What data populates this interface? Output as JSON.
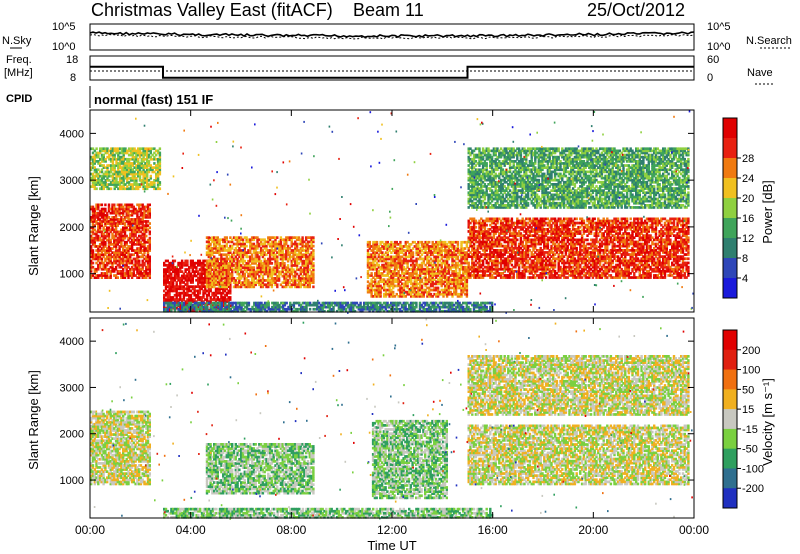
{
  "header": {
    "title": "Christmas Valley East (fitACF)",
    "beam": "Beam 11",
    "date": "25/Oct/2012"
  },
  "noise_panel": {
    "left_label": "N.Sky",
    "right_label": "N.Search",
    "left_ticks": [
      "10^5",
      "10^0"
    ],
    "right_ticks": [
      "10^5",
      "10^0"
    ]
  },
  "freq_panel": {
    "left_label_1": "Freq.",
    "left_label_2": "[MHz]",
    "right_label": "Nave",
    "left_ticks": [
      "18",
      "8"
    ],
    "right_ticks": [
      "60",
      "0"
    ]
  },
  "cpid": {
    "label": "CPID",
    "value": "normal (fast) 151 IF"
  },
  "x_axis": {
    "label": "Time UT",
    "ticks": [
      "00:00",
      "04:00",
      "08:00",
      "12:00",
      "16:00",
      "20:00",
      "00:00"
    ]
  },
  "power_panel": {
    "ylabel": "Slant Range [km]",
    "y_ticks": [
      "1000",
      "2000",
      "3000",
      "4000"
    ],
    "colorbar_label": "Power [dB]",
    "colorbar_ticks": [
      "4",
      "8",
      "12",
      "16",
      "20",
      "24",
      "28"
    ],
    "colors": [
      "#1a1adb",
      "#2e46b8",
      "#2f7f6f",
      "#3fa45a",
      "#8fd040",
      "#f0c020",
      "#f07a10",
      "#e82010",
      "#e00000"
    ]
  },
  "velocity_panel": {
    "ylabel": "Slant Range [km]",
    "y_ticks": [
      "1000",
      "2000",
      "3000",
      "4000"
    ],
    "colorbar_label": "Velocity [m s⁻¹]",
    "colorbar_ticks": [
      "200",
      "100",
      "50",
      "15",
      "-15",
      "-50",
      "-100",
      "-200"
    ],
    "colors": [
      "#2030c0",
      "#2f6f8f",
      "#2f9f5f",
      "#7ad040",
      "#c8c8c0",
      "#f0b020",
      "#f07010",
      "#e02010",
      "#e00000"
    ]
  },
  "chart_data": {
    "type": "heatmap",
    "x_range_hours": [
      0,
      24
    ],
    "y_range_km": [
      180,
      4500
    ],
    "freq_mhz": [
      {
        "start": 0,
        "end": 2.9,
        "value": 14
      },
      {
        "start": 2.9,
        "end": 15.0,
        "value": 9
      },
      {
        "start": 15.0,
        "end": 24,
        "value": 14
      }
    ],
    "power_blobs": [
      {
        "x0": 0.0,
        "x1": 2.4,
        "y0": 900,
        "y1": 2500,
        "level": 7
      },
      {
        "x0": 2.9,
        "x1": 5.6,
        "y0": 200,
        "y1": 1300,
        "level": 8
      },
      {
        "x0": 4.6,
        "x1": 8.9,
        "y0": 700,
        "y1": 1800,
        "level": 6
      },
      {
        "x0": 2.9,
        "x1": 16.0,
        "y0": 180,
        "y1": 400,
        "level": 2
      },
      {
        "x0": 11.0,
        "x1": 15.0,
        "y0": 500,
        "y1": 1700,
        "level": 6
      },
      {
        "x0": 15.0,
        "x1": 23.8,
        "y0": 900,
        "y1": 2200,
        "level": 7
      },
      {
        "x0": 15.0,
        "x1": 23.8,
        "y0": 2400,
        "y1": 3700,
        "level": 3
      },
      {
        "x0": 0.0,
        "x1": 2.8,
        "y0": 2800,
        "y1": 3700,
        "level": 4
      }
    ],
    "velocity_blobs": [
      {
        "x0": 0.0,
        "x1": 2.4,
        "y0": 900,
        "y1": 2500,
        "level": 4
      },
      {
        "x0": 4.6,
        "x1": 8.9,
        "y0": 700,
        "y1": 1800,
        "level": 3
      },
      {
        "x0": 11.2,
        "x1": 14.2,
        "y0": 600,
        "y1": 2300,
        "level": 3
      },
      {
        "x0": 15.0,
        "x1": 23.8,
        "y0": 900,
        "y1": 2200,
        "level": 4
      },
      {
        "x0": 2.9,
        "x1": 16.0,
        "y0": 180,
        "y1": 400,
        "level": 3
      },
      {
        "x0": 15.0,
        "x1": 23.8,
        "y0": 2400,
        "y1": 3700,
        "level": 4
      }
    ]
  }
}
